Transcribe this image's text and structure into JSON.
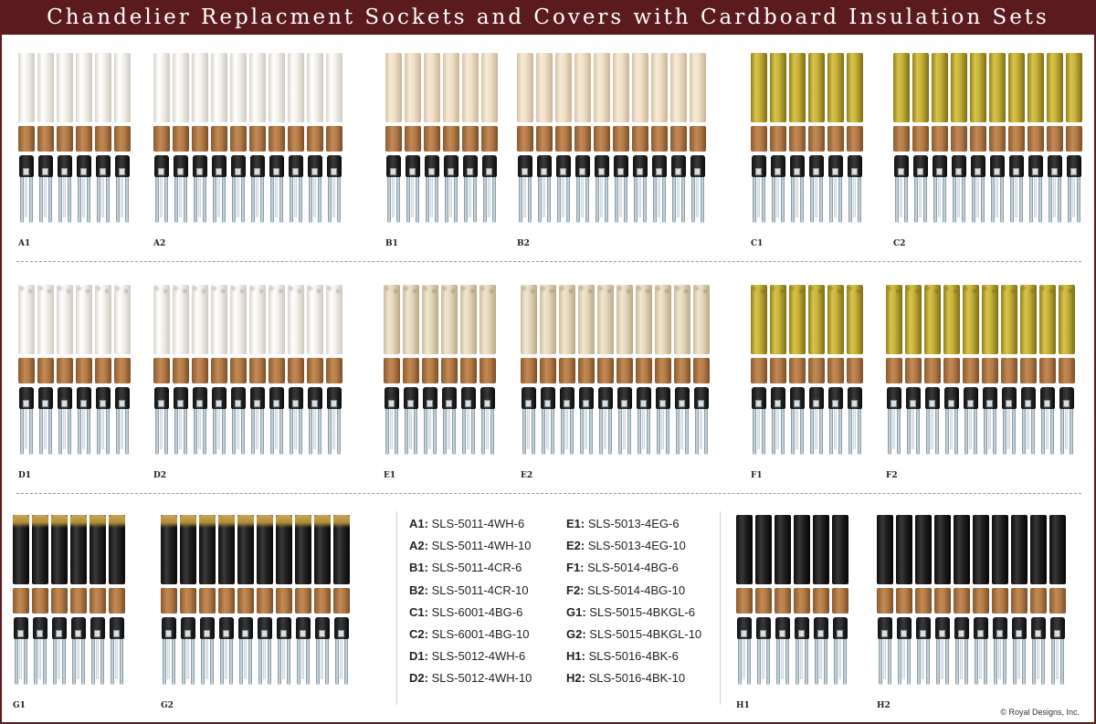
{
  "title": "Chandelier Replacment Sockets and Covers with Cardboard Insulation Sets",
  "copyright": "© Royal Designs, Inc.",
  "colors": {
    "title_bar": "#5a1a1e",
    "white": "#f4f2ee",
    "cream": "#efe0c8",
    "beeswax_gold": "#c7b23a",
    "ecru_drip": "#e6d8bd",
    "black": "#1f1f1f",
    "black_gold_drip": "#b08a3a"
  },
  "sets": [
    {
      "label": "A1",
      "count": 6,
      "finish": "wh",
      "drip": false
    },
    {
      "label": "A2",
      "count": 10,
      "finish": "wh",
      "drip": false
    },
    {
      "label": "B1",
      "count": 6,
      "finish": "cr",
      "drip": false
    },
    {
      "label": "B2",
      "count": 10,
      "finish": "cr",
      "drip": false
    },
    {
      "label": "C1",
      "count": 6,
      "finish": "bg",
      "drip": false
    },
    {
      "label": "C2",
      "count": 10,
      "finish": "bg",
      "drip": false
    },
    {
      "label": "D1",
      "count": 6,
      "finish": "wh",
      "drip": true
    },
    {
      "label": "D2",
      "count": 10,
      "finish": "wh",
      "drip": true
    },
    {
      "label": "E1",
      "count": 6,
      "finish": "eg",
      "drip": true
    },
    {
      "label": "E2",
      "count": 10,
      "finish": "eg",
      "drip": true
    },
    {
      "label": "F1",
      "count": 6,
      "finish": "bg",
      "drip": true
    },
    {
      "label": "F2",
      "count": 10,
      "finish": "bg",
      "drip": true
    },
    {
      "label": "G1",
      "count": 6,
      "finish": "bkgl",
      "drip": true
    },
    {
      "label": "G2",
      "count": 10,
      "finish": "bkgl",
      "drip": true
    },
    {
      "label": "H1",
      "count": 6,
      "finish": "bk",
      "drip": false
    },
    {
      "label": "H2",
      "count": 10,
      "finish": "bk",
      "drip": false
    }
  ],
  "legend": {
    "left": [
      {
        "code": "A1:",
        "part": "SLS-5011-4WH-6"
      },
      {
        "code": "A2:",
        "part": "SLS-5011-4WH-10"
      },
      {
        "code": "B1:",
        "part": "SLS-5011-4CR-6"
      },
      {
        "code": "B2:",
        "part": "SLS-5011-4CR-10"
      },
      {
        "code": "C1:",
        "part": "SLS-6001-4BG-6"
      },
      {
        "code": "C2:",
        "part": "SLS-6001-4BG-10"
      },
      {
        "code": "D1:",
        "part": "SLS-5012-4WH-6"
      },
      {
        "code": "D2:",
        "part": "SLS-5012-4WH-10"
      }
    ],
    "right": [
      {
        "code": "E1:",
        "part": "SLS-5013-4EG-6"
      },
      {
        "code": "E2:",
        "part": "SLS-5013-4EG-10"
      },
      {
        "code": "F1:",
        "part": "SLS-5014-4BG-6"
      },
      {
        "code": "F2:",
        "part": "SLS-5014-4BG-10"
      },
      {
        "code": "G1:",
        "part": "SLS-5015-4BKGL-6"
      },
      {
        "code": "G2:",
        "part": "SLS-5015-4BKGL-10"
      },
      {
        "code": "H1:",
        "part": "SLS-5016-4BK-6"
      },
      {
        "code": "H2:",
        "part": "SLS-5016-4BK-10"
      }
    ]
  }
}
